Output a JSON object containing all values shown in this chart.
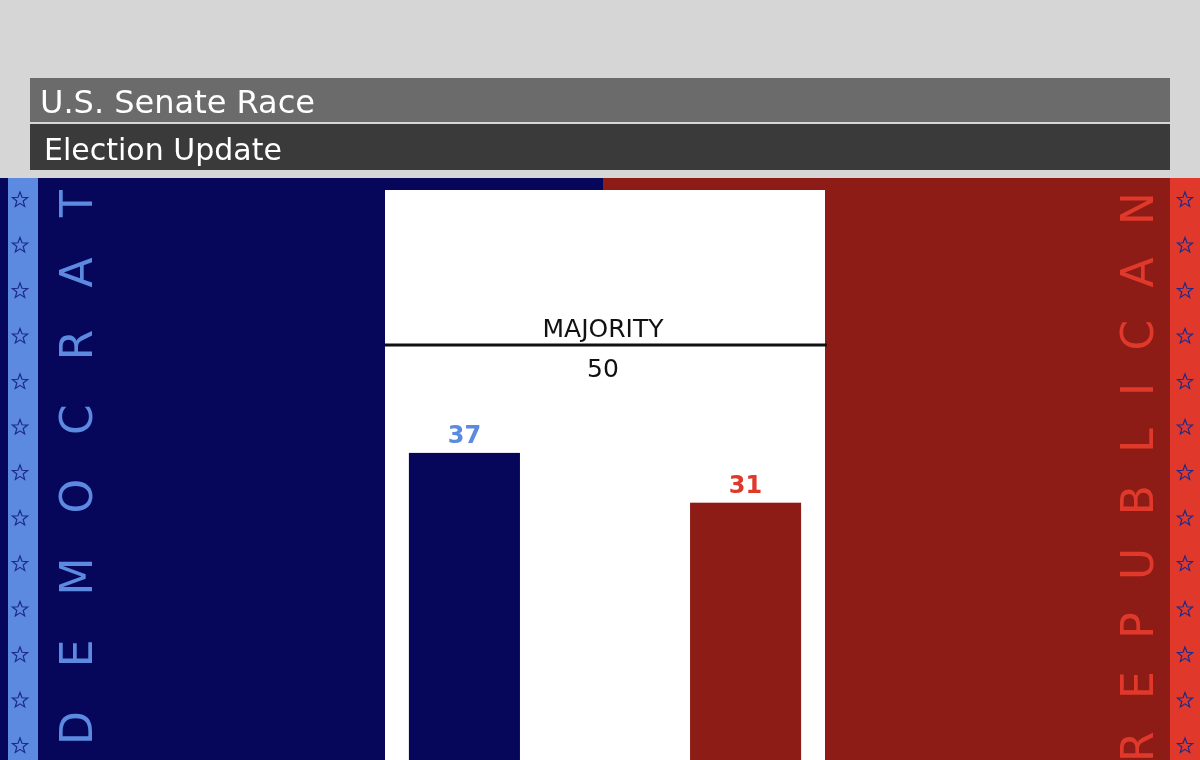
{
  "chart_data": {
    "type": "bar",
    "title": "U.S. Senate Race",
    "subtitle": "Election Update",
    "categories": [
      "DEMOCRAT",
      "REPUBLICAN"
    ],
    "values": [
      37,
      31
    ],
    "colors": [
      "#06065a",
      "#8e1c16"
    ],
    "ylim": [
      0,
      70
    ],
    "data_labels": true,
    "ref_lines": [
      {
        "axis": "y",
        "value": 50,
        "label": "MAJORITY\n50",
        "color": "#111111"
      }
    ]
  }
}
